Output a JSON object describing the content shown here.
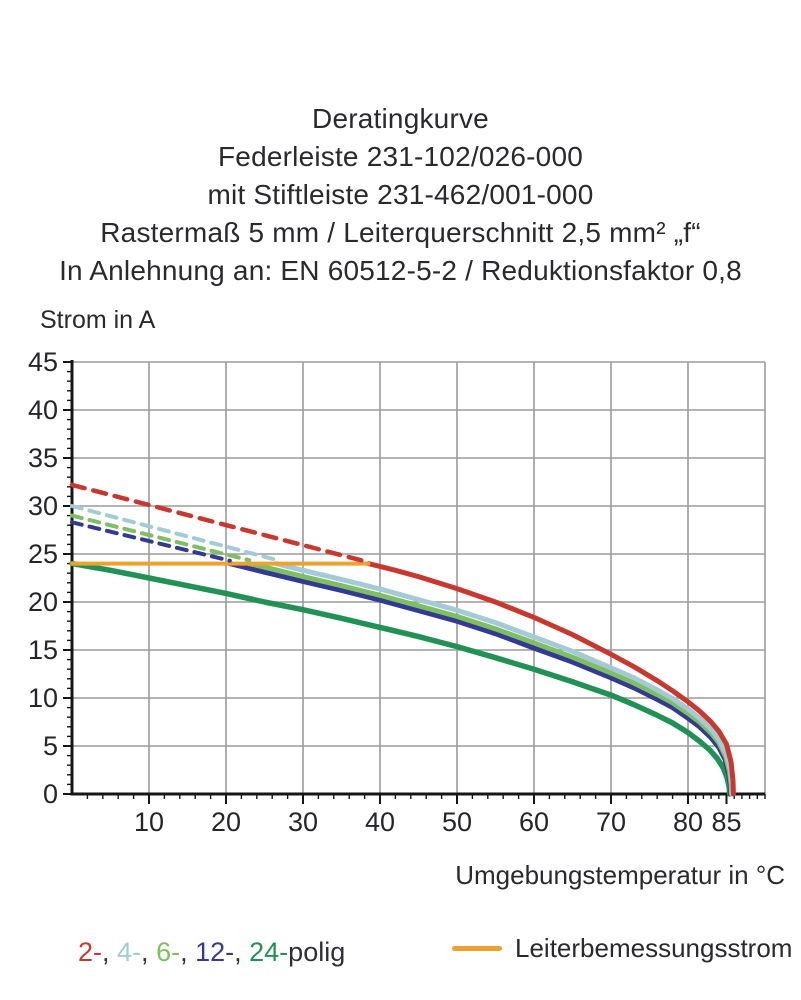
{
  "title": {
    "lines": [
      "Deratingkurve",
      "Federleiste 231-102/026-000",
      "mit Stiftleiste 231-462/001-000",
      "Rastermaß 5 mm / Leiterquerschnitt 2,5 mm² „f“",
      "In Anlehnung an: EN 60512-5-2 / Reduktionsfaktor 0,8"
    ]
  },
  "colors": {
    "grid": "#9b9b9b",
    "axis": "#161616",
    "tick_text": "#26262a",
    "pole2": "#C8382E",
    "pole4": "#A3CBD6",
    "pole6": "#7FBE62",
    "pole12": "#333A94",
    "pole24": "#219255",
    "rated": "#EDA12F"
  },
  "chart_data": {
    "type": "line",
    "title": "Deratingkurve",
    "xlabel": "Umgebungstemperatur in °C",
    "ylabel": "Strom in A",
    "xlim": [
      0,
      90
    ],
    "ylim": [
      0,
      45
    ],
    "x_ticks": [
      10,
      20,
      30,
      40,
      50,
      60,
      70,
      80,
      85
    ],
    "y_ticks": [
      0,
      5,
      10,
      15,
      20,
      25,
      30,
      35,
      40,
      45
    ],
    "x_gridlines": [
      10,
      20,
      30,
      40,
      50,
      60,
      70,
      80
    ],
    "y_gridlines": [
      5,
      10,
      15,
      20,
      25,
      30,
      35,
      40
    ],
    "grid": true,
    "legend_position": "bottom",
    "series": [
      {
        "name": "24-polig",
        "style": "solid",
        "color": "#219255",
        "width": 5.5,
        "points": [
          [
            0,
            24
          ],
          [
            5,
            23.3
          ],
          [
            10,
            22.5
          ],
          [
            15,
            21.7
          ],
          [
            20,
            20.9
          ],
          [
            25,
            20.0
          ],
          [
            30,
            19.2
          ],
          [
            35,
            18.3
          ],
          [
            40,
            17.35
          ],
          [
            45,
            16.4
          ],
          [
            50,
            15.35
          ],
          [
            55,
            14.2
          ],
          [
            60,
            13.0
          ],
          [
            65,
            11.7
          ],
          [
            70,
            10.3
          ],
          [
            73,
            9.3
          ],
          [
            76,
            8.2
          ],
          [
            78,
            7.4
          ],
          [
            80,
            6.4
          ],
          [
            81.5,
            5.5
          ],
          [
            82.8,
            4.6
          ],
          [
            83.8,
            3.7
          ],
          [
            84.6,
            2.7
          ],
          [
            85.1,
            1.6
          ],
          [
            85.35,
            0.7
          ],
          [
            85.4,
            0
          ]
        ]
      },
      {
        "name": "12-polig",
        "style": "solid",
        "color": "#333A94",
        "width": 5,
        "points": [
          [
            20.5,
            24
          ],
          [
            25,
            23.1
          ],
          [
            30,
            22.15
          ],
          [
            35,
            21.2
          ],
          [
            40,
            20.2
          ],
          [
            45,
            19.1
          ],
          [
            50,
            18.0
          ],
          [
            55,
            16.7
          ],
          [
            60,
            15.2
          ],
          [
            65,
            13.75
          ],
          [
            70,
            12.1
          ],
          [
            73,
            11.05
          ],
          [
            76,
            9.85
          ],
          [
            78,
            9.0
          ],
          [
            80,
            7.9
          ],
          [
            81.5,
            7.0
          ],
          [
            83,
            5.85
          ],
          [
            84,
            4.85
          ],
          [
            84.8,
            3.6
          ],
          [
            85.3,
            2.1
          ],
          [
            85.5,
            0.9
          ],
          [
            85.55,
            0
          ]
        ]
      },
      {
        "name": "6-polig",
        "style": "solid",
        "color": "#7FBE62",
        "width": 5,
        "points": [
          [
            23,
            24
          ],
          [
            26,
            23.45
          ],
          [
            30,
            22.65
          ],
          [
            35,
            21.7
          ],
          [
            40,
            20.7
          ],
          [
            45,
            19.6
          ],
          [
            50,
            18.5
          ],
          [
            55,
            17.2
          ],
          [
            60,
            15.75
          ],
          [
            65,
            14.25
          ],
          [
            70,
            12.6
          ],
          [
            73,
            11.55
          ],
          [
            76,
            10.35
          ],
          [
            78,
            9.5
          ],
          [
            80,
            8.4
          ],
          [
            81.5,
            7.5
          ],
          [
            83,
            6.35
          ],
          [
            84,
            5.35
          ],
          [
            84.9,
            3.9
          ],
          [
            85.4,
            2.3
          ],
          [
            85.6,
            1.0
          ],
          [
            85.65,
            0
          ]
        ]
      },
      {
        "name": "4-polig",
        "style": "solid",
        "color": "#A3CBD6",
        "width": 5,
        "points": [
          [
            26.5,
            24
          ],
          [
            30,
            23.3
          ],
          [
            35,
            22.35
          ],
          [
            40,
            21.35
          ],
          [
            45,
            20.25
          ],
          [
            50,
            19.15
          ],
          [
            55,
            17.85
          ],
          [
            60,
            16.35
          ],
          [
            65,
            14.85
          ],
          [
            70,
            13.15
          ],
          [
            73,
            12.1
          ],
          [
            76,
            10.85
          ],
          [
            78,
            9.95
          ],
          [
            80,
            8.85
          ],
          [
            81.5,
            7.9
          ],
          [
            83,
            6.75
          ],
          [
            84,
            5.7
          ],
          [
            85,
            4.1
          ],
          [
            85.5,
            2.5
          ],
          [
            85.7,
            1.1
          ],
          [
            85.75,
            0
          ]
        ]
      },
      {
        "name": "2-polig",
        "style": "solid",
        "color": "#C8382E",
        "width": 5,
        "points": [
          [
            38.5,
            24
          ],
          [
            42,
            23.3
          ],
          [
            45,
            22.65
          ],
          [
            50,
            21.4
          ],
          [
            55,
            20.0
          ],
          [
            60,
            18.4
          ],
          [
            65,
            16.6
          ],
          [
            70,
            14.55
          ],
          [
            73,
            13.25
          ],
          [
            76,
            11.8
          ],
          [
            78,
            10.75
          ],
          [
            80,
            9.6
          ],
          [
            81.5,
            8.65
          ],
          [
            83,
            7.5
          ],
          [
            84,
            6.55
          ],
          [
            85,
            5.2
          ],
          [
            85.6,
            3.3
          ],
          [
            85.85,
            1.4
          ],
          [
            85.9,
            0
          ]
        ]
      },
      {
        "name": "Leiterbemessungsstrom",
        "style": "solid",
        "color": "#EDA12F",
        "width": 4,
        "points": [
          [
            0,
            24
          ],
          [
            38.5,
            24
          ]
        ]
      },
      {
        "name": "12-polig Grenzstrom",
        "style": "dashed",
        "color": "#333A94",
        "width": 4,
        "dash": "10 8",
        "points": [
          [
            0,
            28.3
          ],
          [
            20.5,
            24.3
          ]
        ]
      },
      {
        "name": "6-polig Grenzstrom",
        "style": "dashed",
        "color": "#7FBE62",
        "width": 4,
        "dash": "10 8",
        "points": [
          [
            0,
            29
          ],
          [
            23,
            24.35
          ]
        ]
      },
      {
        "name": "4-polig Grenzstrom",
        "style": "dashed",
        "color": "#A3CBD6",
        "width": 4,
        "dash": "10 8",
        "points": [
          [
            0,
            30
          ],
          [
            26.5,
            24.4
          ]
        ]
      },
      {
        "name": "2-polig Grenzstrom",
        "style": "dashed",
        "color": "#C8382E",
        "width": 4.5,
        "dash": "13 9",
        "points": [
          [
            0,
            32.2
          ],
          [
            38.5,
            24.15
          ]
        ]
      }
    ]
  },
  "legend": {
    "poles": [
      {
        "label": "2-",
        "color": "#C8382E"
      },
      {
        "label": "4-",
        "color": "#A3CBD6"
      },
      {
        "label": "6-",
        "color": "#7FBE62"
      },
      {
        "label": "12-",
        "color": "#333A94"
      },
      {
        "label": "24-",
        "color": "#219255"
      }
    ],
    "separator": ", ",
    "poles_suffix": "polig",
    "text_color": "#2f2f38",
    "rated_label": "Leiterbemessungsstrom",
    "rated_color": "#EDA12F"
  }
}
